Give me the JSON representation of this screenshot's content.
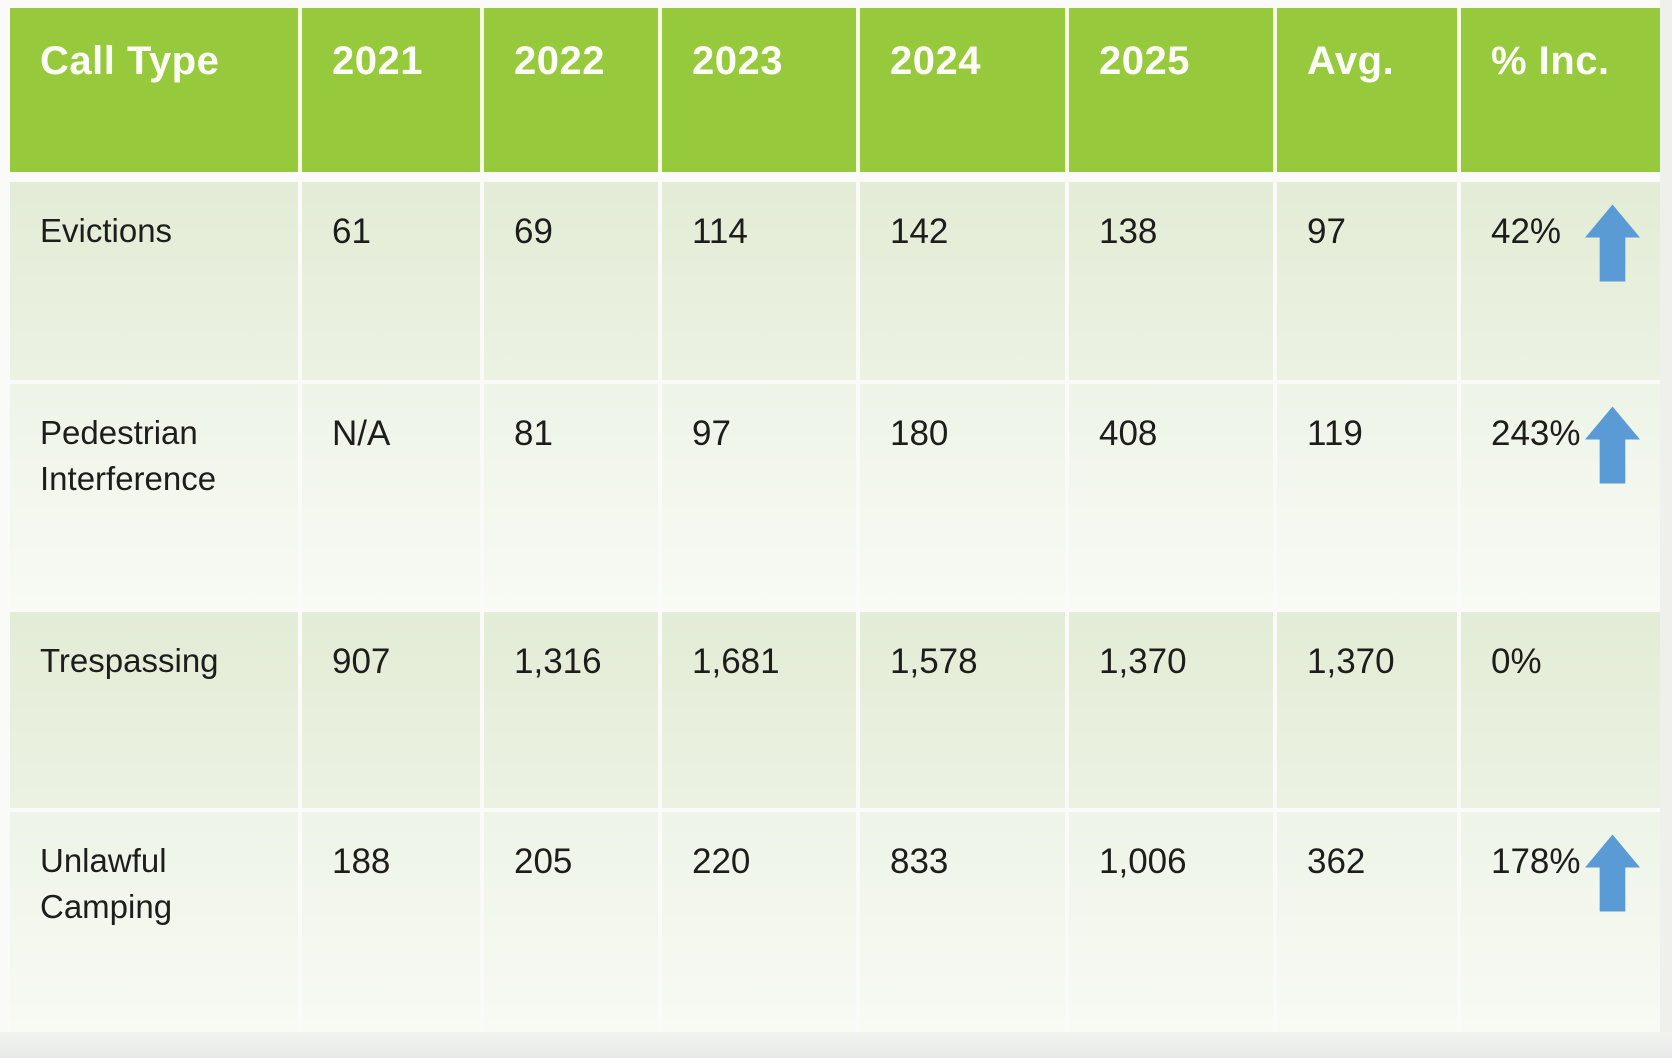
{
  "table": {
    "columns": [
      "Call Type",
      "2021",
      "2022",
      "2023",
      "2024",
      "2025",
      "Avg.",
      "% Inc."
    ],
    "rows": [
      {
        "label": "Evictions",
        "values": [
          "61",
          "69",
          "114",
          "142",
          "138",
          "97"
        ],
        "pct_inc": "42%",
        "trend_up": true
      },
      {
        "label": "Pedestrian Interference",
        "values": [
          "N/A",
          "81",
          "97",
          "180",
          "408",
          "119"
        ],
        "pct_inc": "243%",
        "trend_up": true
      },
      {
        "label": "Trespassing",
        "values": [
          "907",
          "1,316",
          "1,681",
          "1,578",
          "1,370",
          "1,370"
        ],
        "pct_inc": "0%",
        "trend_up": false
      },
      {
        "label": "Unlawful Camping",
        "values": [
          "188",
          "205",
          "220",
          "833",
          "1,006",
          "362"
        ],
        "pct_inc": "178%",
        "trend_up": true
      }
    ]
  },
  "chart_data": {
    "type": "table",
    "columns": [
      "Call Type",
      "2021",
      "2022",
      "2023",
      "2024",
      "2025",
      "Avg.",
      "% Inc."
    ],
    "rows": [
      [
        "Evictions",
        "61",
        "69",
        "114",
        "142",
        "138",
        "97",
        "42%"
      ],
      [
        "Pedestrian Interference",
        "N/A",
        "81",
        "97",
        "180",
        "408",
        "119",
        "243%"
      ],
      [
        "Trespassing",
        "907",
        "1,316",
        "1,681",
        "1,578",
        "1,370",
        "1,370",
        "0%"
      ],
      [
        "Unlawful Camping",
        "188",
        "205",
        "220",
        "833",
        "1,006",
        "362",
        "178%"
      ]
    ],
    "trend_up_rows": [
      0,
      1,
      3
    ],
    "notes": "Blue up-arrow icon shown beside % Inc. value for rows with an increase; no arrow on the 0% row."
  },
  "icons": {
    "trend_up": "up-arrow-icon"
  },
  "colors": {
    "header_bg": "#96C93C",
    "header_text": "#FCFDF6",
    "cell_text": "#1D1D1B",
    "arrow_blue": "#5B9BD5",
    "row_odd_top": "#E3ECD6",
    "row_even_top": "#EEF4E8"
  }
}
